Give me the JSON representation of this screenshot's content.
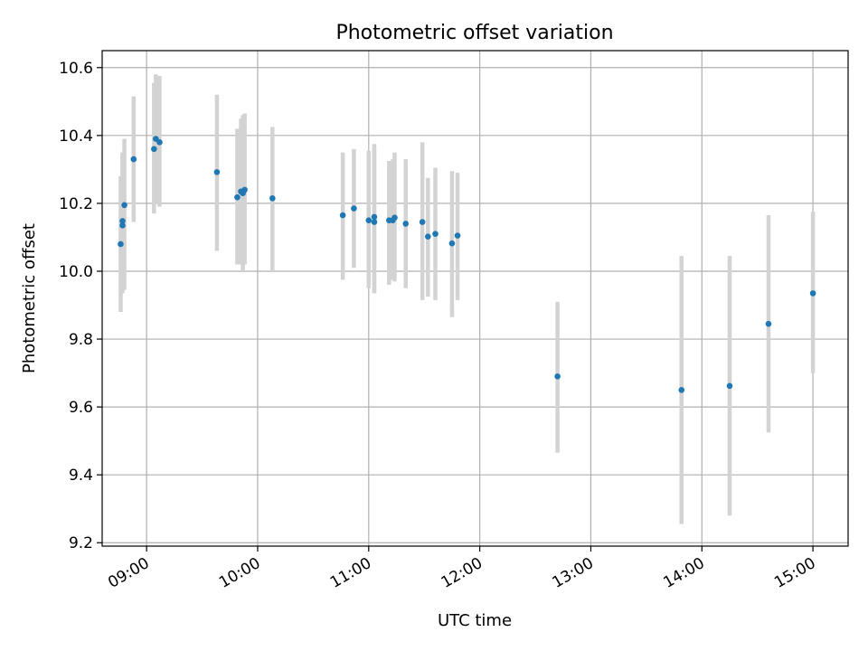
{
  "chart_data": {
    "type": "scatter",
    "title": "Photometric offset variation",
    "xlabel": "UTC time",
    "ylabel": "Photometric offset",
    "xlim": [
      "08:36",
      "15:19"
    ],
    "ylim": [
      9.19,
      10.65
    ],
    "x_ticks": [
      "09:00",
      "10:00",
      "11:00",
      "12:00",
      "13:00",
      "14:00",
      "15:00"
    ],
    "y_ticks": [
      9.2,
      9.4,
      9.6,
      9.8,
      10.0,
      10.2,
      10.4,
      10.6
    ],
    "y_tick_labels": [
      "9.2",
      "9.4",
      "9.6",
      "9.8",
      "10.0",
      "10.2",
      "10.4",
      "10.6"
    ],
    "grid": true,
    "marker_color": "#1f77b4",
    "errorbar_color": "#d3d3d3",
    "points": [
      {
        "x": "08:46",
        "y": 10.08,
        "low": 9.88,
        "high": 10.28
      },
      {
        "x": "08:47",
        "y": 10.135,
        "low": 9.935,
        "high": 10.345
      },
      {
        "x": "08:47",
        "y": 10.148,
        "low": 9.95,
        "high": 10.35
      },
      {
        "x": "08:48",
        "y": 10.195,
        "low": 9.945,
        "high": 10.39
      },
      {
        "x": "08:53",
        "y": 10.33,
        "low": 10.145,
        "high": 10.515
      },
      {
        "x": "09:04",
        "y": 10.36,
        "low": 10.17,
        "high": 10.555
      },
      {
        "x": "09:05",
        "y": 10.39,
        "low": 10.2,
        "high": 10.58
      },
      {
        "x": "09:07",
        "y": 10.38,
        "low": 10.19,
        "high": 10.575
      },
      {
        "x": "09:38",
        "y": 10.292,
        "low": 10.06,
        "high": 10.52
      },
      {
        "x": "09:49",
        "y": 10.218,
        "low": 10.02,
        "high": 10.42
      },
      {
        "x": "09:51",
        "y": 10.235,
        "low": 10.02,
        "high": 10.45
      },
      {
        "x": "09:52",
        "y": 10.23,
        "low": 10.0,
        "high": 10.46
      },
      {
        "x": "09:53",
        "y": 10.24,
        "low": 10.02,
        "high": 10.465
      },
      {
        "x": "10:08",
        "y": 10.215,
        "low": 10.0,
        "high": 10.425
      },
      {
        "x": "10:46",
        "y": 10.165,
        "low": 9.975,
        "high": 10.35
      },
      {
        "x": "10:52",
        "y": 10.185,
        "low": 10.01,
        "high": 10.36
      },
      {
        "x": "11:00",
        "y": 10.15,
        "low": 9.95,
        "high": 10.355
      },
      {
        "x": "11:03",
        "y": 10.16,
        "low": 9.94,
        "high": 10.375
      },
      {
        "x": "11:03",
        "y": 10.145,
        "low": 9.935,
        "high": 10.36
      },
      {
        "x": "11:11",
        "y": 10.15,
        "low": 9.96,
        "high": 10.325
      },
      {
        "x": "11:13",
        "y": 10.15,
        "low": 9.975,
        "high": 10.33
      },
      {
        "x": "11:14",
        "y": 10.158,
        "low": 9.97,
        "high": 10.35
      },
      {
        "x": "11:20",
        "y": 10.14,
        "low": 9.95,
        "high": 10.33
      },
      {
        "x": "11:29",
        "y": 10.145,
        "low": 9.915,
        "high": 10.38
      },
      {
        "x": "11:32",
        "y": 10.102,
        "low": 9.925,
        "high": 10.275
      },
      {
        "x": "11:36",
        "y": 10.11,
        "low": 9.915,
        "high": 10.305
      },
      {
        "x": "11:45",
        "y": 10.082,
        "low": 9.865,
        "high": 10.295
      },
      {
        "x": "11:48",
        "y": 10.105,
        "low": 9.915,
        "high": 10.29
      },
      {
        "x": "12:42",
        "y": 9.69,
        "low": 9.465,
        "high": 9.91
      },
      {
        "x": "13:49",
        "y": 9.65,
        "low": 9.255,
        "high": 10.045
      },
      {
        "x": "14:15",
        "y": 9.662,
        "low": 9.28,
        "high": 10.045
      },
      {
        "x": "14:36",
        "y": 9.845,
        "low": 9.525,
        "high": 10.165
      },
      {
        "x": "15:00",
        "y": 9.935,
        "low": 9.7,
        "high": 10.175
      }
    ]
  }
}
